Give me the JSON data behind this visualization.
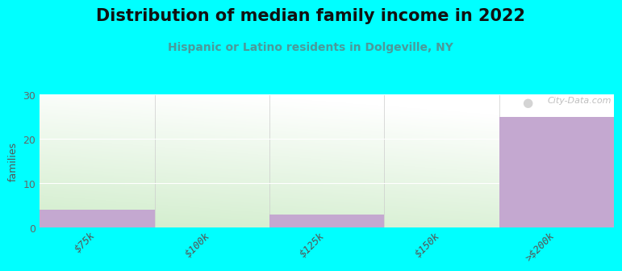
{
  "title": "Distribution of median family income in 2022",
  "subtitle": "Hispanic or Latino residents in Dolgeville, NY",
  "ylabel": "families",
  "background_color": "#00FFFF",
  "bar_color": "#C4A8D0",
  "categories": [
    "$75k",
    "$100k",
    "$125k",
    "$150k",
    ">$200k"
  ],
  "values": [
    4,
    0,
    3,
    0,
    25
  ],
  "ylim": [
    0,
    30
  ],
  "yticks": [
    0,
    10,
    20,
    30
  ],
  "grid_color": "#ffffff",
  "watermark": "City-Data.com",
  "title_fontsize": 15,
  "subtitle_fontsize": 10,
  "ylabel_fontsize": 9,
  "tick_fontsize": 9,
  "subtitle_color": "#4a9a9a"
}
